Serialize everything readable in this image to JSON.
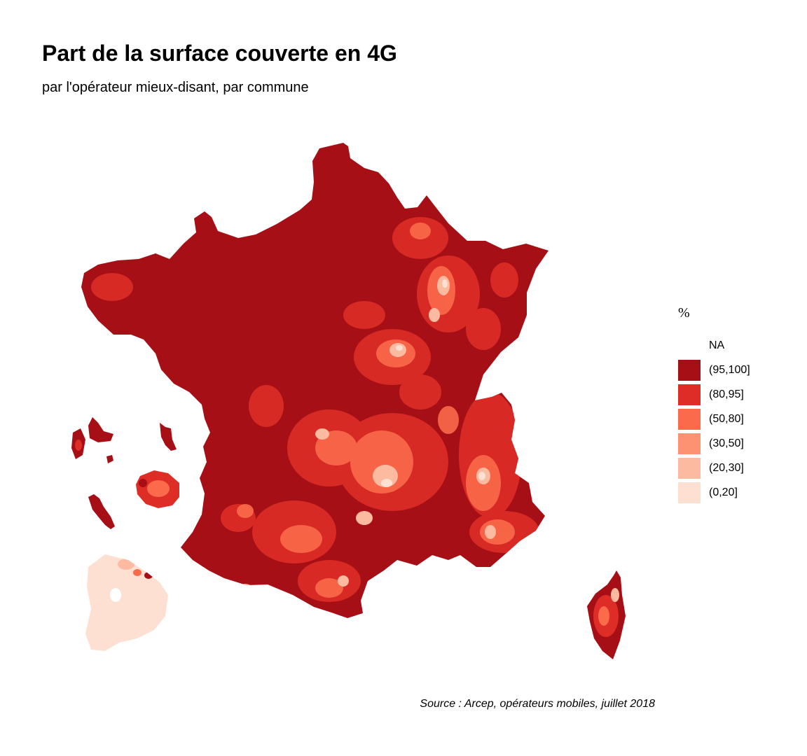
{
  "header": {
    "title": "Part de la surface couverte en 4G",
    "subtitle": "par l'opérateur mieux-disant, par commune"
  },
  "legend": {
    "title": "%",
    "items": [
      {
        "label": "NA",
        "color": "#ffffff"
      },
      {
        "label": "(95,100]",
        "color": "#a50f15"
      },
      {
        "label": "(80,95]",
        "color": "#de2d26"
      },
      {
        "label": "(50,80]",
        "color": "#fb6a4a"
      },
      {
        "label": "(30,50]",
        "color": "#fc9272"
      },
      {
        "label": "(20,30]",
        "color": "#fcbba1"
      },
      {
        "label": "(0,20]",
        "color": "#fee0d2"
      }
    ]
  },
  "map": {
    "regions": [
      "France métropolitaine",
      "Corse",
      "Guadeloupe",
      "Martinique",
      "La Réunion",
      "Mayotte",
      "Guyane"
    ],
    "dominant_color": "#a50f15"
  },
  "footer": {
    "source": "Source : Arcep, opérateurs mobiles, juillet 2018"
  }
}
